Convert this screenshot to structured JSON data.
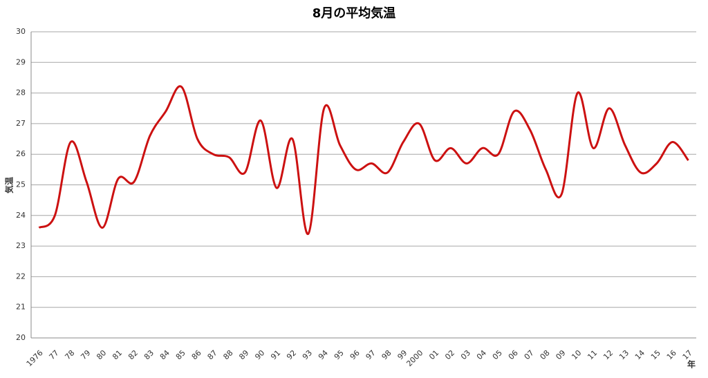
{
  "chart_data": {
    "type": "line",
    "title": "8月の平均気温",
    "y_label": "気温",
    "x_label": "年",
    "categories": [
      "1976",
      "77",
      "78",
      "79",
      "80",
      "81",
      "82",
      "83",
      "84",
      "85",
      "86",
      "87",
      "88",
      "89",
      "90",
      "91",
      "92",
      "93",
      "94",
      "95",
      "96",
      "97",
      "98",
      "99",
      "2000",
      "01",
      "02",
      "03",
      "04",
      "05",
      "06",
      "07",
      "08",
      "09",
      "10",
      "11",
      "12",
      "13",
      "14",
      "15",
      "16",
      "17"
    ],
    "series": [
      {
        "name": "平均気温",
        "color": "#cc1111",
        "values": [
          23.6,
          24.0,
          26.4,
          25.1,
          23.6,
          25.2,
          25.1,
          26.6,
          27.4,
          28.2,
          26.5,
          26.0,
          25.9,
          25.4,
          27.1,
          24.9,
          26.5,
          23.4,
          27.5,
          26.3,
          25.5,
          25.7,
          25.4,
          26.4,
          27.0,
          25.8,
          26.2,
          25.7,
          26.2,
          26.0,
          27.4,
          26.8,
          25.5,
          24.7,
          28.0,
          26.2,
          27.5,
          26.3,
          25.4,
          25.7,
          26.4,
          25.8
        ]
      }
    ],
    "ylim": [
      20,
      30
    ],
    "yticks": [
      20,
      21,
      22,
      23,
      24,
      25,
      26,
      27,
      28,
      29,
      30
    ],
    "grid": true,
    "smooth": true
  }
}
